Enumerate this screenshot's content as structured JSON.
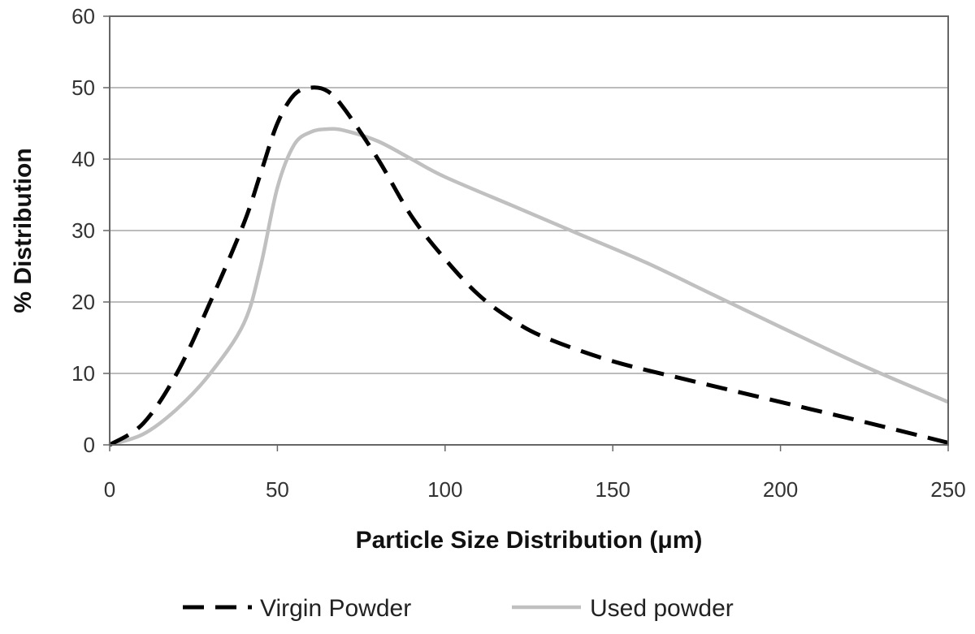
{
  "chart_data": {
    "type": "line",
    "title": "",
    "xlabel": "Particle Size Distribution (μm)",
    "ylabel": "% Distribution",
    "xlim": [
      0,
      250
    ],
    "ylim": [
      0,
      60
    ],
    "xticks": [
      "0",
      "50",
      "100",
      "150",
      "200",
      "250"
    ],
    "yticks": [
      "0",
      "10",
      "20",
      "30",
      "40",
      "50",
      "60"
    ],
    "grid": "horizontal",
    "legend_position": "bottom",
    "series": [
      {
        "name": "Virgin Powder",
        "style": "dashed",
        "color": "#000000",
        "x": [
          0,
          10,
          20,
          30,
          40,
          45,
          50,
          55,
          60,
          65,
          70,
          80,
          90,
          100,
          110,
          120,
          130,
          150,
          175,
          200,
          225,
          250
        ],
        "y": [
          0,
          3,
          10,
          20,
          31,
          38,
          45,
          49,
          50,
          49.5,
          47,
          40,
          32,
          26,
          21,
          17.5,
          15,
          11.7,
          8.8,
          6,
          3.2,
          0.3
        ]
      },
      {
        "name": "Used powder",
        "style": "solid",
        "color": "#c0c0c0",
        "x": [
          0,
          10,
          20,
          30,
          40,
          45,
          50,
          55,
          60,
          65,
          70,
          80,
          90,
          100,
          120,
          140,
          160,
          180,
          200,
          225,
          250
        ],
        "y": [
          0,
          1.5,
          5,
          10,
          17,
          25,
          36,
          42,
          43.8,
          44.2,
          44,
          42.5,
          40,
          37.5,
          33.5,
          29.5,
          25.5,
          21,
          16.5,
          11,
          6
        ]
      }
    ]
  }
}
